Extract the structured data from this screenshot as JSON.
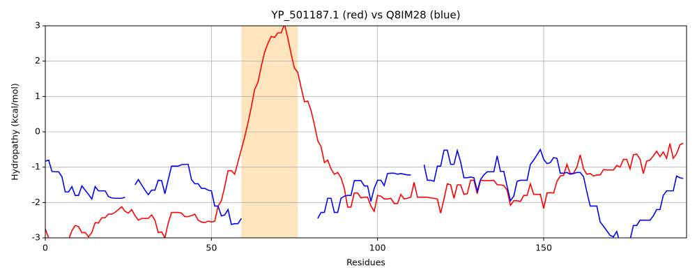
{
  "chart_data": {
    "type": "line",
    "title": "YP_501187.1 (red) vs Q8IM28 (blue)",
    "x_label": "Residues",
    "y_label": "Hydropathy (kcal/mol)",
    "xlim": [
      0,
      193
    ],
    "ylim": [
      -3,
      3
    ],
    "xticks": [
      0,
      50,
      100,
      150
    ],
    "yticks": [
      -3,
      -2,
      -1,
      0,
      1,
      2,
      3
    ],
    "grid": true,
    "highlight": [
      59,
      76
    ],
    "highlight_color": "#ffe5bd",
    "x": [
      0,
      1,
      2,
      3,
      4,
      5,
      6,
      7,
      8,
      9,
      10,
      11,
      12,
      13,
      14,
      15,
      16,
      17,
      18,
      19,
      20,
      21,
      22,
      23,
      24,
      25,
      26,
      27,
      28,
      29,
      30,
      31,
      32,
      33,
      34,
      35,
      36,
      37,
      38,
      39,
      40,
      41,
      42,
      43,
      44,
      45,
      46,
      47,
      48,
      49,
      50,
      51,
      52,
      53,
      54,
      55,
      56,
      57,
      58,
      59,
      60,
      61,
      62,
      63,
      64,
      65,
      66,
      67,
      68,
      69,
      70,
      71,
      72,
      73,
      74,
      75,
      76,
      77,
      78,
      79,
      80,
      81,
      82,
      83,
      84,
      85,
      86,
      87,
      88,
      89,
      90,
      91,
      92,
      93,
      94,
      95,
      96,
      97,
      98,
      99,
      100,
      101,
      102,
      103,
      104,
      105,
      106,
      107,
      108,
      109,
      110,
      111,
      112,
      113,
      114,
      115,
      116,
      117,
      118,
      119,
      120,
      121,
      122,
      123,
      124,
      125,
      126,
      127,
      128,
      129,
      130,
      131,
      132,
      133,
      134,
      135,
      136,
      137,
      138,
      139,
      140,
      141,
      142,
      143,
      144,
      145,
      146,
      147,
      148,
      149,
      150,
      151,
      152,
      153,
      154,
      155,
      156,
      157,
      158,
      159,
      160,
      161,
      162,
      163,
      164,
      165,
      166,
      167,
      168,
      169,
      170,
      171,
      172,
      173,
      174,
      175,
      176,
      177,
      178,
      179,
      180,
      181,
      182,
      183,
      184,
      185,
      186,
      187,
      188,
      189,
      190,
      191,
      192
    ],
    "series": [
      {
        "name": "YP_501187.1",
        "color": "#ff0000",
        "values": [
          -2.75,
          -3.0,
          -3.05,
          -3.1,
          -3.1,
          -3.1,
          -3.0,
          -3.05,
          -2.8,
          -2.65,
          -2.68,
          -2.85,
          -2.85,
          -2.97,
          -2.85,
          -2.57,
          -2.58,
          -2.43,
          -2.43,
          -2.33,
          -2.33,
          -2.28,
          -2.2,
          -2.12,
          -2.25,
          -2.3,
          -2.2,
          -2.37,
          -2.5,
          -2.45,
          -2.45,
          -2.45,
          -2.35,
          -2.5,
          -2.85,
          -2.83,
          -3.0,
          -2.58,
          -2.28,
          -2.28,
          -2.28,
          -2.3,
          -2.4,
          -2.4,
          -2.37,
          -2.33,
          -2.5,
          -2.55,
          -2.57,
          -2.53,
          -2.55,
          -2.53,
          -2.1,
          -1.95,
          -1.55,
          -1.1,
          -1.1,
          -1.2,
          -0.85,
          -0.5,
          -0.15,
          0.25,
          0.7,
          1.2,
          1.4,
          1.85,
          2.25,
          2.5,
          2.7,
          2.67,
          2.8,
          2.8,
          3.05,
          2.65,
          2.2,
          1.8,
          1.68,
          1.25,
          0.85,
          0.87,
          0.6,
          0.2,
          -0.25,
          -0.42,
          -0.87,
          -0.8,
          -1.05,
          -1.2,
          -1.15,
          -1.3,
          -1.6,
          -2.13,
          -2.13,
          -1.73,
          -1.73,
          -1.87,
          -1.85,
          -1.85,
          -2.1,
          -2.25,
          -1.8,
          -1.82,
          -1.9,
          -1.9,
          -1.88,
          -2.03,
          -2.03,
          -1.77,
          -1.9,
          -1.88,
          -1.85,
          -1.43,
          -1.85,
          -1.85,
          -1.85,
          -1.85,
          -1.87,
          -1.88,
          -1.9,
          -2.3,
          -1.9,
          -1.47,
          -1.5,
          -1.88,
          -1.5,
          -1.5,
          -1.77,
          -1.75,
          -1.37,
          -1.37,
          -1.75,
          -1.37,
          -1.38,
          -1.38,
          -1.38,
          -1.37,
          -1.5,
          -1.5,
          -1.52,
          -1.65,
          -2.08,
          -1.95,
          -1.95,
          -1.97,
          -1.8,
          -1.8,
          -1.47,
          -1.77,
          -1.77,
          -1.77,
          -2.17,
          -1.73,
          -1.72,
          -1.73,
          -1.4,
          -1.25,
          -1.23,
          -0.92,
          -1.18,
          -1.17,
          -1.0,
          -0.65,
          -1.05,
          -1.2,
          -1.18,
          -1.25,
          -1.22,
          -1.22,
          -1.07,
          -1.08,
          -1.08,
          -1.08,
          -0.95,
          -1.0,
          -0.78,
          -0.78,
          -1.05,
          -0.65,
          -0.63,
          -0.77,
          -1.18,
          -0.83,
          -0.8,
          -0.68,
          -0.55,
          -0.7,
          -0.57,
          -0.75,
          -0.33,
          -0.75,
          -0.62,
          -0.37,
          -0.32
        ]
      },
      {
        "name": "Q8IM28",
        "color": "#0000ff",
        "values": [
          -0.83,
          -0.8,
          -1.12,
          -1.13,
          -1.13,
          -1.27,
          -1.7,
          -1.7,
          -1.55,
          -1.8,
          -1.8,
          -1.53,
          -1.65,
          -1.77,
          -1.9,
          -1.55,
          -1.67,
          -1.67,
          -1.67,
          -1.83,
          -1.87,
          -1.88,
          -1.88,
          -1.88,
          -1.85,
          null,
          null,
          -1.5,
          -1.35,
          -1.5,
          -1.65,
          -1.78,
          -1.65,
          -1.65,
          -1.37,
          -1.38,
          -1.75,
          -1.35,
          -0.97,
          -0.97,
          -0.97,
          -0.93,
          -0.92,
          -0.92,
          -1.35,
          -1.47,
          -1.47,
          -1.6,
          -1.6,
          -1.65,
          -1.67,
          -2.1,
          -2.1,
          -2.38,
          -2.35,
          -2.2,
          -2.62,
          -2.6,
          -2.6,
          -2.45,
          null,
          null,
          null,
          null,
          null,
          null,
          null,
          null,
          null,
          null,
          null,
          null,
          null,
          null,
          null,
          null,
          null,
          null,
          null,
          null,
          null,
          null,
          -2.45,
          -2.28,
          -2.28,
          -1.88,
          -1.88,
          -2.28,
          -2.28,
          -1.88,
          -1.82,
          -1.8,
          -1.8,
          -1.38,
          -1.38,
          -1.38,
          -1.53,
          -1.53,
          -1.97,
          -1.6,
          -1.37,
          -1.37,
          -1.52,
          -1.18,
          -1.17,
          -1.17,
          -1.2,
          -1.18,
          -1.2,
          -1.22,
          -1.22,
          null,
          null,
          null,
          -0.93,
          -1.37,
          -1.37,
          -1.4,
          -0.97,
          -0.97,
          -0.52,
          -0.52,
          -0.92,
          -0.92,
          -0.53,
          -0.85,
          -1.3,
          -1.3,
          -1.28,
          -1.3,
          -1.68,
          -1.35,
          -1.22,
          -1.13,
          -1.13,
          -1.13,
          -0.68,
          -1.12,
          -1.12,
          -1.55,
          -1.95,
          -1.82,
          -1.4,
          -1.37,
          -1.37,
          -1.37,
          -0.92,
          -0.8,
          -0.65,
          -0.5,
          -0.78,
          -0.9,
          -0.87,
          -0.73,
          -0.75,
          -1.17,
          -1.17,
          -1.15,
          -1.2,
          -1.18,
          -1.15,
          -1.15,
          -1.27,
          -1.7,
          -2.1,
          -2.1,
          -2.1,
          -2.55,
          -2.67,
          -2.8,
          -2.93,
          -2.97,
          -2.82,
          -3.15,
          -3.2,
          -3.2,
          -3.05,
          -2.65,
          -2.65,
          -2.5,
          -2.5,
          -2.5,
          -2.5,
          -2.38,
          -2.2,
          -2.2,
          -1.8,
          -1.67,
          -1.67,
          -1.67,
          -1.25,
          -1.3,
          -1.32
        ]
      }
    ]
  }
}
